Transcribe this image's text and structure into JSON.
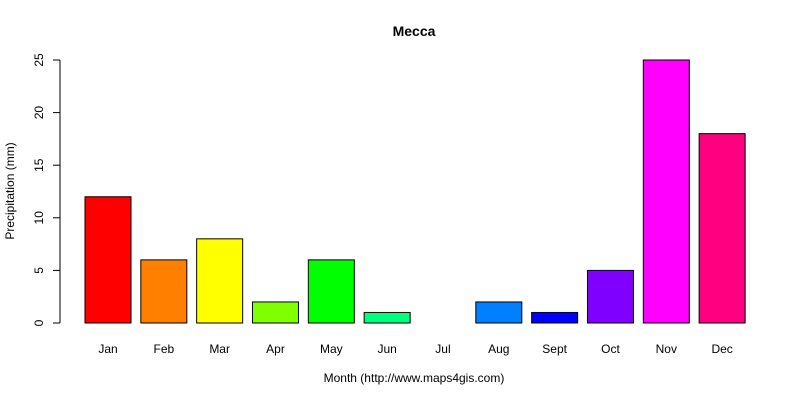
{
  "chart_data": {
    "type": "bar",
    "title": "Mecca",
    "xlabel": "Month (http://www.maps4gis.com)",
    "ylabel": "Precipitation (mm)",
    "ylim": [
      0,
      25
    ],
    "yticks": [
      0,
      5,
      10,
      15,
      20,
      25
    ],
    "categories": [
      "Jan",
      "Feb",
      "Mar",
      "Apr",
      "May",
      "Jun",
      "Jul",
      "Aug",
      "Sept",
      "Oct",
      "Nov",
      "Dec"
    ],
    "values": [
      12,
      6,
      8,
      2,
      6,
      1,
      0,
      2,
      1,
      5,
      25,
      18
    ],
    "colors": [
      "#FF0000",
      "#FF8000",
      "#FFFF00",
      "#80FF00",
      "#00FF00",
      "#00FF80",
      "#00FFFF",
      "#0080FF",
      "#0000FF",
      "#8000FF",
      "#FF00FF",
      "#FF0080"
    ],
    "grid": false,
    "legend": "none"
  }
}
